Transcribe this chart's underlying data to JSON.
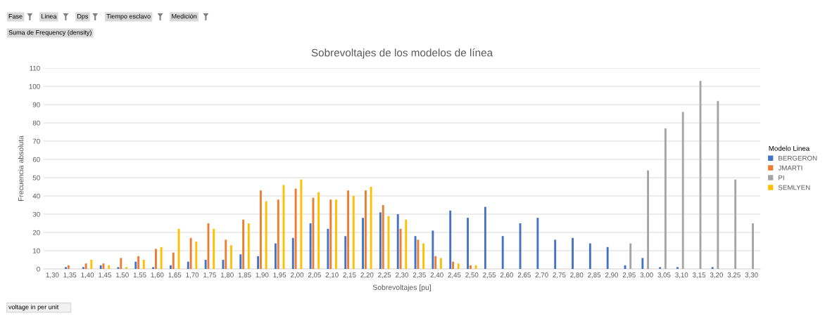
{
  "chart_data": {
    "type": "bar",
    "title": "Sobrevoltajes de los modelos de línea",
    "xlabel": "Sobrevoltajes [pu]",
    "ylabel": "Frecuencia absoluta",
    "legend_title": "Modelo Linea",
    "categories": [
      "1,30",
      "1,35",
      "1,40",
      "1,45",
      "1,50",
      "1,55",
      "1,60",
      "1,65",
      "1,70",
      "1,75",
      "1,80",
      "1,85",
      "1,90",
      "1,95",
      "2,00",
      "2,05",
      "2,10",
      "2,15",
      "2,20",
      "2,25",
      "2,30",
      "2,35",
      "2,40",
      "2,45",
      "2,50",
      "2,55",
      "2,60",
      "2,65",
      "2,70",
      "2,75",
      "2,80",
      "2,85",
      "2,90",
      "2,95",
      "3,00",
      "3,05",
      "3,10",
      "3,15",
      "3,20",
      "3,25",
      "3,30"
    ],
    "series": [
      {
        "name": "BERGERON",
        "color": "#4472c4",
        "values": [
          null,
          1,
          1,
          2,
          1,
          4,
          1,
          2,
          4,
          5,
          5,
          8,
          7,
          14,
          17,
          25,
          22,
          18,
          28,
          31,
          30,
          18,
          21,
          32,
          28,
          34,
          18,
          25,
          28,
          16,
          17,
          14,
          12,
          2,
          6,
          1,
          1,
          null,
          1,
          null,
          null
        ]
      },
      {
        "name": "JMARTI",
        "color": "#ed7d31",
        "values": [
          null,
          2,
          3,
          3,
          6,
          7,
          11,
          9,
          17,
          25,
          16,
          27,
          43,
          38,
          44,
          39,
          38,
          43,
          43,
          35,
          22,
          16,
          7,
          4,
          2,
          null,
          null,
          null,
          null,
          null,
          null,
          null,
          null,
          null,
          null,
          null,
          null,
          null,
          null,
          null,
          null
        ]
      },
      {
        "name": "PI",
        "color": "#a5a5a5",
        "values": [
          null,
          null,
          null,
          null,
          null,
          null,
          null,
          null,
          null,
          null,
          null,
          null,
          null,
          null,
          null,
          null,
          null,
          null,
          null,
          null,
          null,
          null,
          null,
          null,
          null,
          null,
          null,
          null,
          null,
          null,
          null,
          null,
          null,
          14,
          54,
          77,
          86,
          103,
          92,
          49,
          25
        ]
      },
      {
        "name": "SEMLYEN",
        "color": "#ffc000",
        "values": [
          null,
          null,
          5,
          2,
          1,
          5,
          12,
          22,
          15,
          22,
          13,
          25,
          37,
          46,
          49,
          42,
          38,
          40,
          45,
          29,
          27,
          14,
          6,
          3,
          2,
          null,
          null,
          null,
          null,
          null,
          null,
          null,
          null,
          null,
          null,
          null,
          null,
          null,
          null,
          null,
          null
        ]
      }
    ],
    "ylim": [
      0,
      110
    ],
    "yticks": [
      0,
      10,
      20,
      30,
      40,
      50,
      60,
      70,
      80,
      90,
      100,
      110
    ],
    "grid": "y",
    "legend": "right",
    "annotations": [
      "Fase",
      "Linea",
      "Dps",
      "Tiempo esclavo",
      "Medición",
      "Suma de Frequency (density)",
      "voltage in per unit"
    ]
  }
}
